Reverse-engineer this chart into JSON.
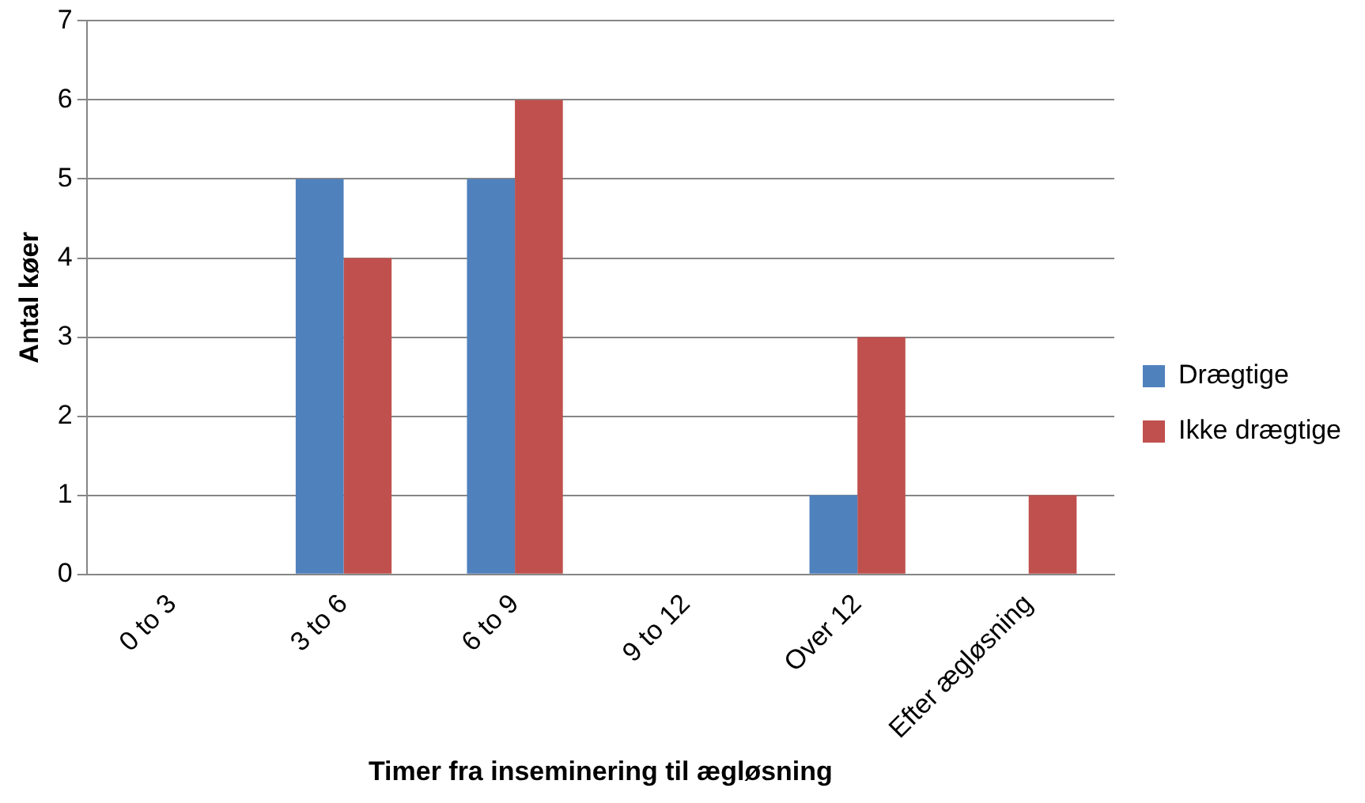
{
  "chart_data": {
    "type": "bar",
    "xlabel": "Timer fra inseminering til ægløsning",
    "ylabel": "Antal køer",
    "categories": [
      "0 to 3",
      "3 to 6",
      "6 to 9",
      "9 to 12",
      "Over 12",
      "Efter ægløsning"
    ],
    "series": [
      {
        "name": "Drægtige",
        "color": "#4f81bd",
        "values": [
          0,
          5,
          5,
          0,
          1,
          0
        ]
      },
      {
        "name": "Ikke drægtige",
        "color": "#c0504d",
        "values": [
          0,
          4,
          6,
          0,
          3,
          1
        ]
      }
    ],
    "ylim": [
      0,
      7
    ],
    "yticks": [
      0,
      1,
      2,
      3,
      4,
      5,
      6,
      7
    ],
    "grid": "y",
    "legend": "right"
  }
}
